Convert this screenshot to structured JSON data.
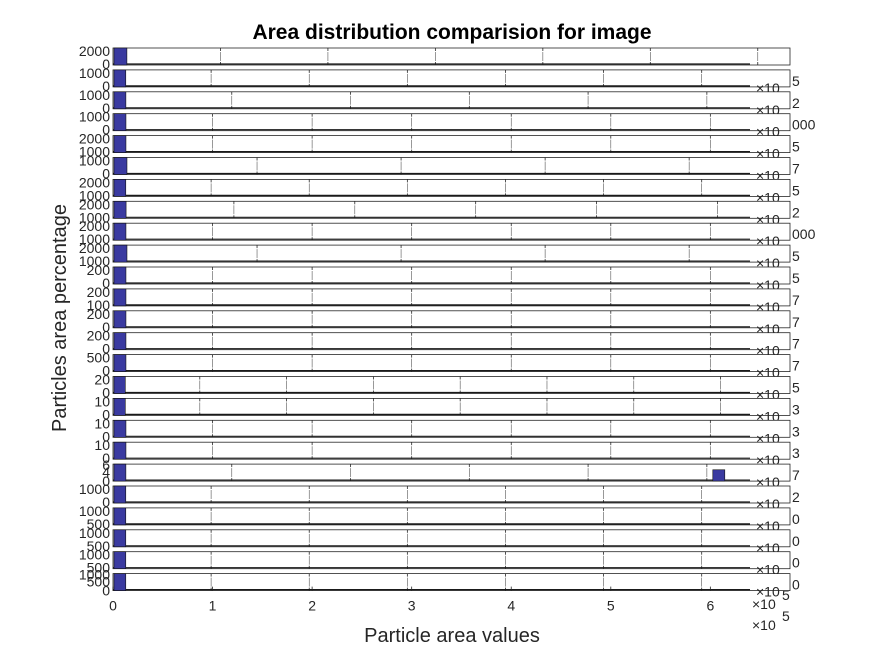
{
  "chart_data": {
    "type": "bar",
    "title": "Area distribution comparision for image",
    "xlabel": "Particle area values",
    "ylabel": "Particles area percentage",
    "x_exponent_label": "×10",
    "x_exponent_power": "5",
    "bottom_xticks": [
      "0",
      "1",
      "2",
      "3",
      "4",
      "5",
      "6"
    ],
    "bottom_xlim": [
      0,
      6.8
    ],
    "bar_color": "#3a3aa0",
    "panels": [
      {
        "ymax": 2000,
        "yticks": [
          "2000",
          "0"
        ],
        "xlim_right": 6.3,
        "xticks": [
          1,
          2,
          3,
          4,
          5,
          6
        ],
        "overflow": "",
        "first_bin_width": 0.12,
        "first_bin": 2000
      },
      {
        "ymax": 1000,
        "yticks": [
          "1000",
          "0"
        ],
        "xlim_right": 6.9,
        "xticks": [
          1,
          2,
          3,
          4,
          5,
          6
        ],
        "overflow": "5",
        "first_bin_width": 0.12,
        "first_bin": 1000
      },
      {
        "ymax": 1000,
        "yticks": [
          "1000",
          "0"
        ],
        "xlim_right": 5.7,
        "xticks": [
          1,
          2,
          3,
          4,
          5
        ],
        "overflow": "2",
        "first_bin_width": 0.1,
        "first_bin": 1000
      },
      {
        "ymax": 1000,
        "yticks": [
          "1000",
          "0"
        ],
        "xlim_right": 6.8,
        "xticks": [
          1,
          2,
          3,
          4,
          5,
          6
        ],
        "overflow": "000",
        "first_bin_width": 0.12,
        "first_bin": 1000
      },
      {
        "ymax": 2000,
        "yticks": [
          "2000",
          "1000"
        ],
        "xlim_right": 6.8,
        "xticks": [
          1,
          2,
          3,
          4,
          5,
          6
        ],
        "overflow": "5",
        "first_bin_width": 0.12,
        "first_bin": 2000
      },
      {
        "ymax": 1000,
        "yticks": [
          "1000",
          "0"
        ],
        "xlim_right": 4.7,
        "xticks": [
          1,
          2,
          3,
          4
        ],
        "overflow": "7",
        "first_bin_width": 0.09,
        "first_bin": 1000
      },
      {
        "ymax": 2000,
        "yticks": [
          "2000",
          "1000"
        ],
        "xlim_right": 6.9,
        "xticks": [
          1,
          2,
          3,
          4,
          5,
          6
        ],
        "overflow": "5",
        "first_bin_width": 0.12,
        "first_bin": 2000
      },
      {
        "ymax": 2000,
        "yticks": [
          "2000",
          "1000"
        ],
        "xlim_right": 5.6,
        "xticks": [
          1,
          2,
          3,
          4,
          5,
          6,
          7
        ],
        "overflow": "2",
        "first_bin_width": 0.1,
        "first_bin": 2000
      },
      {
        "ymax": 2000,
        "yticks": [
          "2000",
          "1000"
        ],
        "xlim_right": 6.8,
        "xticks": [
          1,
          2,
          3,
          4,
          5,
          6
        ],
        "overflow": "000",
        "first_bin_width": 0.12,
        "first_bin": 2000
      },
      {
        "ymax": 2000,
        "yticks": [
          "2000",
          "1000"
        ],
        "xlim_right": 4.7,
        "xticks": [
          1,
          2,
          3,
          4
        ],
        "overflow": "5",
        "first_bin_width": 0.09,
        "first_bin": 2000
      },
      {
        "ymax": 200,
        "yticks": [
          "200",
          "0"
        ],
        "xlim_right": 6.8,
        "xticks": [
          1,
          2,
          3,
          4,
          5,
          6
        ],
        "overflow": "5",
        "first_bin_width": 0.12,
        "first_bin": 200
      },
      {
        "ymax": 200,
        "yticks": [
          "200",
          "100"
        ],
        "xlim_right": 6.8,
        "xticks": [
          1,
          2,
          3,
          4,
          5,
          6
        ],
        "overflow": "7",
        "first_bin_width": 0.12,
        "first_bin": 200
      },
      {
        "ymax": 200,
        "yticks": [
          "200",
          "0"
        ],
        "xlim_right": 6.8,
        "xticks": [
          1,
          2,
          3,
          4,
          5,
          6
        ],
        "overflow": "7",
        "first_bin_width": 0.12,
        "first_bin": 200
      },
      {
        "ymax": 200,
        "yticks": [
          "200",
          "0"
        ],
        "xlim_right": 6.8,
        "xticks": [
          1,
          2,
          3,
          4,
          5,
          6
        ],
        "overflow": "7",
        "first_bin_width": 0.12,
        "first_bin": 200
      },
      {
        "ymax": 500,
        "yticks": [
          "500",
          "0"
        ],
        "xlim_right": 6.8,
        "xticks": [
          1,
          2,
          3,
          4,
          5,
          6
        ],
        "overflow": "7",
        "first_bin_width": 0.12,
        "first_bin": 500
      },
      {
        "ymax": 20,
        "yticks": [
          "20",
          "0"
        ],
        "xlim_right": 7.8,
        "xticks": [
          1,
          2,
          3,
          4,
          5,
          6,
          7
        ],
        "overflow": "5",
        "first_bin_width": 0.13,
        "first_bin": 20
      },
      {
        "ymax": 10,
        "yticks": [
          "10",
          "0"
        ],
        "xlim_right": 7.8,
        "xticks": [
          1,
          2,
          3,
          4,
          5,
          6,
          7
        ],
        "overflow": "3",
        "first_bin_width": 0.13,
        "first_bin": 10
      },
      {
        "ymax": 10,
        "yticks": [
          "10",
          "0"
        ],
        "xlim_right": 6.8,
        "xticks": [
          1,
          2,
          3,
          4,
          5,
          6
        ],
        "overflow": "3",
        "first_bin_width": 0.12,
        "first_bin": 10
      },
      {
        "ymax": 10,
        "yticks": [
          "10",
          "0"
        ],
        "xlim_right": 6.8,
        "xticks": [
          1,
          2,
          3,
          4,
          5,
          6
        ],
        "overflow": "3",
        "first_bin_width": 0.12,
        "first_bin": 10
      },
      {
        "ymax": 6,
        "yticks": [
          "6",
          "4",
          "0"
        ],
        "xlim_right": 5.7,
        "xticks": [
          1,
          2,
          3,
          4,
          5
        ],
        "overflow": "7",
        "first_bin_width": 0.1,
        "first_bin": 6,
        "extra_bin_x": 5.05,
        "extra_bin": 4
      },
      {
        "ymax": 1000,
        "yticks": [
          "1000",
          "0"
        ],
        "xlim_right": 6.9,
        "xticks": [
          1,
          2,
          3,
          4,
          5,
          6
        ],
        "overflow": "2",
        "first_bin_width": 0.12,
        "first_bin": 1000
      },
      {
        "ymax": 1000,
        "yticks": [
          "1000",
          "500"
        ],
        "xlim_right": 6.9,
        "xticks": [
          1,
          2,
          3,
          4,
          5,
          6
        ],
        "overflow": "0",
        "first_bin_width": 0.12,
        "first_bin": 1000
      },
      {
        "ymax": 1000,
        "yticks": [
          "1000",
          "500"
        ],
        "xlim_right": 6.9,
        "xticks": [
          1,
          2,
          3,
          4,
          5,
          6
        ],
        "overflow": "0",
        "first_bin_width": 0.12,
        "first_bin": 1000
      },
      {
        "ymax": 1000,
        "yticks": [
          "1000",
          "500"
        ],
        "xlim_right": 6.9,
        "xticks": [
          1,
          2,
          3,
          4,
          5,
          6
        ],
        "overflow": "0",
        "first_bin_width": 0.12,
        "first_bin": 1000
      },
      {
        "ymax": 1000,
        "yticks": [
          "1000",
          "500",
          "0"
        ],
        "xlim_right": 6.9,
        "xticks": [
          1,
          2,
          3,
          4,
          5,
          6
        ],
        "overflow": "0",
        "first_bin_width": 0.12,
        "first_bin": 1000
      }
    ]
  }
}
